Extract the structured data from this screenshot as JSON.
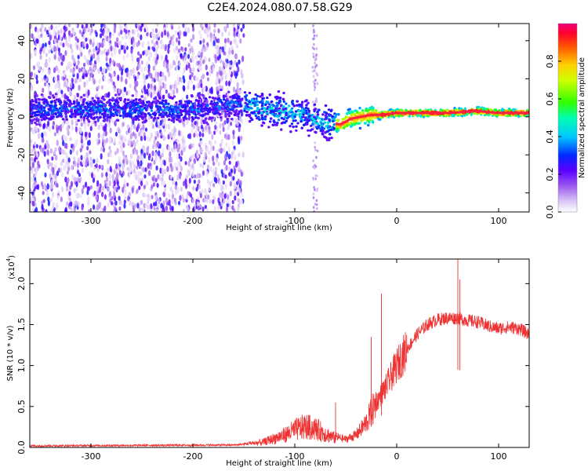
{
  "title": "C2E4.2024.080.07.58.G29",
  "chart_data": [
    {
      "type": "heatmap",
      "name": "spectrogram",
      "xlabel": "Height of straight line (km)",
      "ylabel": "Frequency (Hz)",
      "xlim": [
        -360,
        130
      ],
      "ylim": [
        -50,
        49
      ],
      "xticks": [
        -300,
        -200,
        -100,
        0,
        100
      ],
      "xtick_labels": [
        "-300",
        "-200",
        "-100",
        "0",
        "100"
      ],
      "yticks": [
        -40,
        -20,
        0,
        20,
        40
      ],
      "ytick_labels": [
        "-40",
        "-20",
        "0",
        "20",
        "40"
      ],
      "colorbar": {
        "label": "Normalized spectral amplitude",
        "range": [
          0,
          1
        ],
        "ticks": [
          0.0,
          0.2,
          0.4,
          0.6,
          0.8
        ],
        "tick_labels": [
          "0.0",
          "0.2",
          "0.4",
          "0.6",
          "0.8"
        ]
      },
      "ridge": {
        "height_km": [
          -360,
          -300,
          -200,
          -150,
          -130,
          -110,
          -95,
          -85,
          -75,
          -65,
          -55,
          -45,
          -35,
          -25,
          -15,
          0,
          20,
          50,
          80,
          100,
          130
        ],
        "frequency_hz": [
          4,
          4,
          4,
          7,
          4,
          3,
          2,
          -1,
          -2,
          -3,
          -4,
          -1,
          0,
          1,
          1,
          2,
          2,
          2,
          3,
          2,
          2
        ]
      }
    },
    {
      "type": "line",
      "name": "snr",
      "xlabel": "Height of straight line (km)",
      "ylabel": "SNR (10 * v/v)",
      "multiplier_label": "(x10",
      "multiplier_exp": "4",
      "multiplier_close": ")",
      "xlim": [
        -360,
        130
      ],
      "ylim": [
        0,
        2.3
      ],
      "xticks": [
        -300,
        -200,
        -100,
        0,
        100
      ],
      "xtick_labels": [
        "-300",
        "-200",
        "-100",
        "0",
        "100"
      ],
      "yticks": [
        0.0,
        0.5,
        1.0,
        1.5,
        2.0
      ],
      "ytick_labels": [
        "0.0",
        "0.5",
        "1.0",
        "1.5",
        "2.0"
      ],
      "color": "#ee3333",
      "envelope": {
        "height_km": [
          -360,
          -160,
          -150,
          -130,
          -120,
          -110,
          -100,
          -90,
          -80,
          -70,
          -60,
          -50,
          -40,
          -30,
          -20,
          -10,
          0,
          10,
          20,
          30,
          40,
          50,
          60,
          70,
          80,
          90,
          100,
          110,
          120,
          130
        ],
        "snr_x1e4": [
          0.02,
          0.03,
          0.04,
          0.08,
          0.13,
          0.18,
          0.25,
          0.3,
          0.27,
          0.2,
          0.13,
          0.1,
          0.15,
          0.3,
          0.55,
          0.75,
          1.0,
          1.2,
          1.38,
          1.5,
          1.56,
          1.58,
          1.58,
          1.55,
          1.53,
          1.48,
          1.45,
          1.47,
          1.45,
          1.38
        ]
      },
      "spikes": [
        {
          "x": -15,
          "y": 1.88
        },
        {
          "x": 60,
          "y": 2.3
        },
        {
          "x": 62,
          "y": 2.05
        },
        {
          "x": -25,
          "y": 1.35
        },
        {
          "x": -60,
          "y": 0.55
        }
      ]
    }
  ]
}
